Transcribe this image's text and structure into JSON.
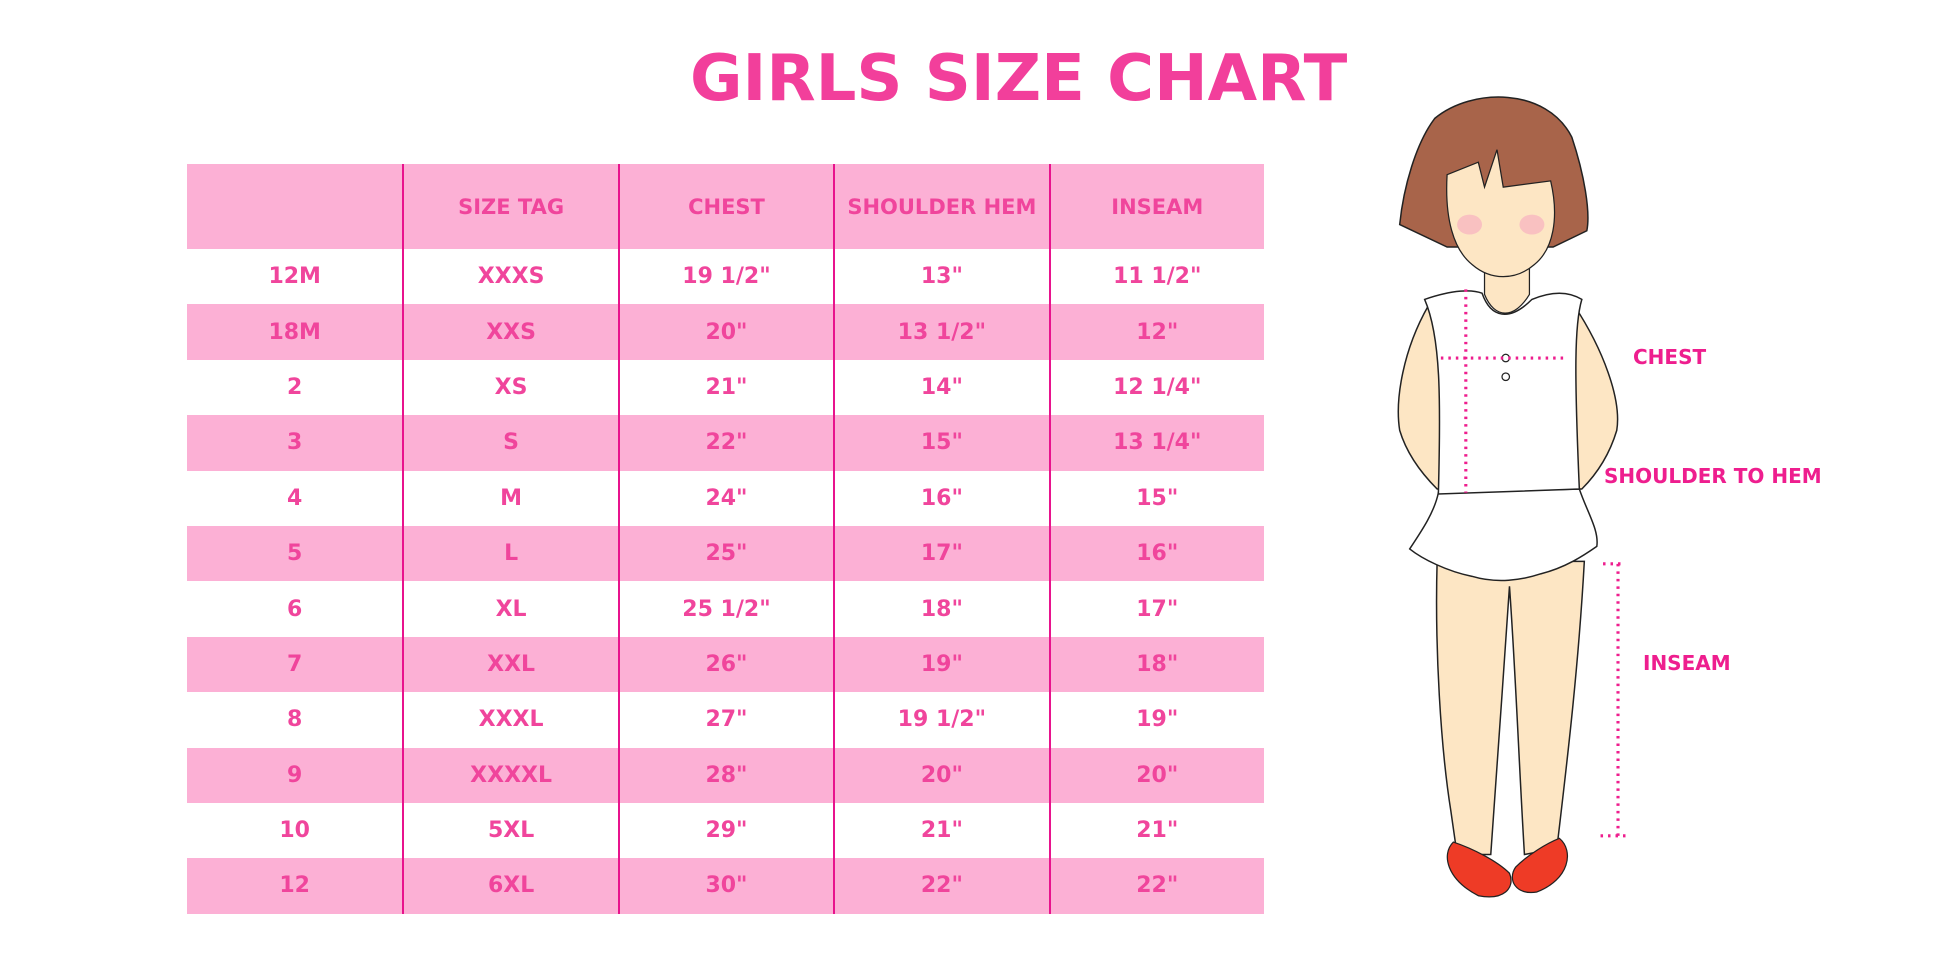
{
  "title": "GIRLS SIZE CHART",
  "table": {
    "headers": [
      "",
      "SIZE TAG",
      "CHEST",
      "SHOULDER HEM",
      "INSEAM"
    ],
    "rows": [
      [
        "12M",
        "XXXS",
        "19 1/2\"",
        "13\"",
        "11 1/2\""
      ],
      [
        "18M",
        "XXS",
        "20\"",
        "13 1/2\"",
        "12\""
      ],
      [
        "2",
        "XS",
        "21\"",
        "14\"",
        "12 1/4\""
      ],
      [
        "3",
        "S",
        "22\"",
        "15\"",
        "13 1/4\""
      ],
      [
        "4",
        "M",
        "24\"",
        "16\"",
        "15\""
      ],
      [
        "5",
        "L",
        "25\"",
        "17\"",
        "16\""
      ],
      [
        "6",
        "XL",
        "25 1/2\"",
        "18\"",
        "17\""
      ],
      [
        "7",
        "XXL",
        "26\"",
        "19\"",
        "18\""
      ],
      [
        "8",
        "XXXL",
        "27\"",
        "19 1/2\"",
        "19\""
      ],
      [
        "9",
        "XXXXL",
        "28\"",
        "20\"",
        "20\""
      ],
      [
        "10",
        "5XL",
        "29\"",
        "21\"",
        "21\""
      ],
      [
        "12",
        "6XL",
        "30\"",
        "22\"",
        "22\""
      ]
    ]
  },
  "figure": {
    "labels": {
      "chest": "CHEST",
      "shoulder_to_hem": "SHOULDER TO HEM",
      "inseam": "INSEAM"
    }
  },
  "colors": {
    "accent": "#f0459c",
    "row_pink": "#fcb0d5",
    "divider": "#e8138d"
  }
}
